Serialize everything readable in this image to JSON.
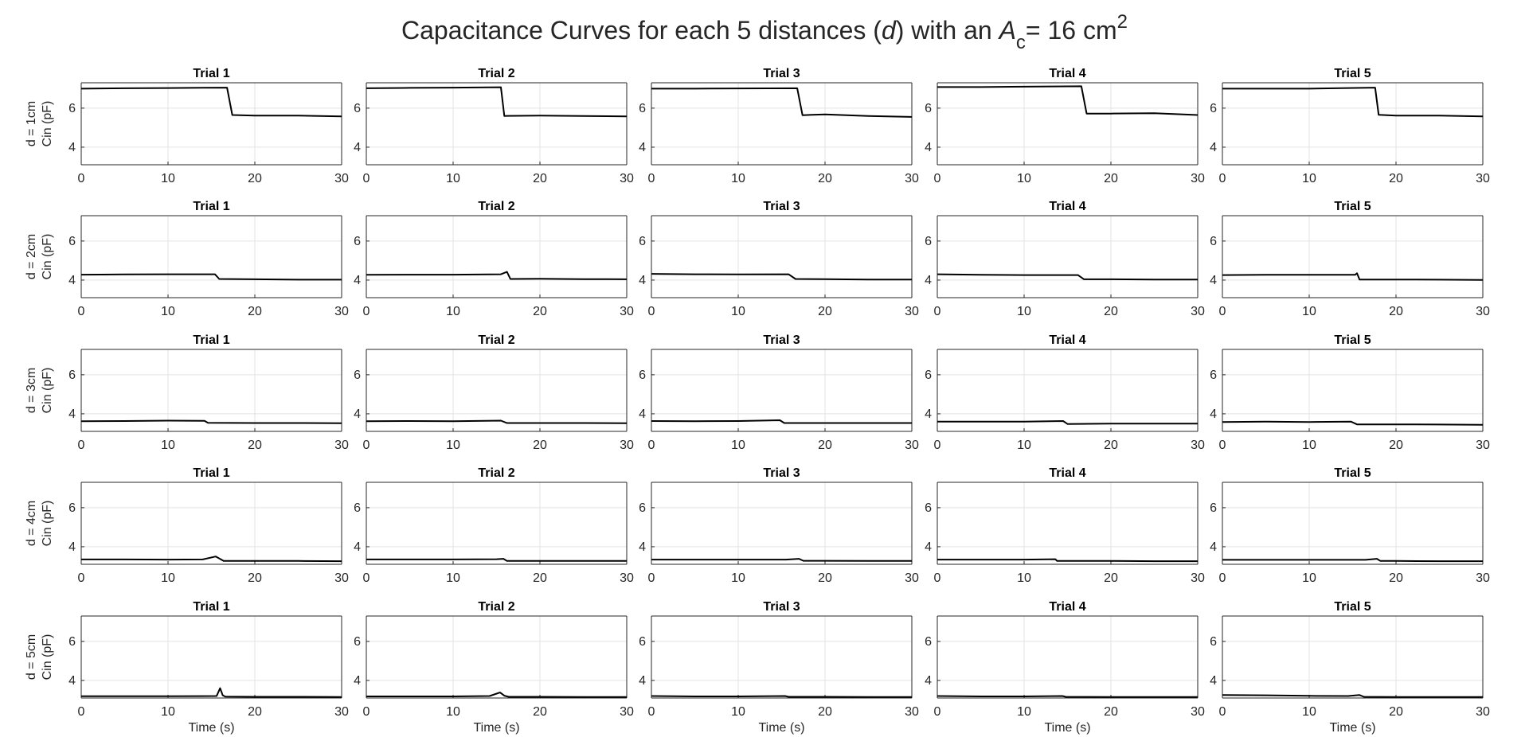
{
  "figure": {
    "title_main": "Capacitance Curves for each 5 distances (",
    "title_d": "d",
    "title_mid": ") with an ",
    "title_A": "A",
    "title_sub": "c",
    "title_eq": "= 16 cm",
    "title_sup": "2"
  },
  "chart_data": {
    "type": "line",
    "xlim": [
      0,
      30
    ],
    "ylim": [
      3.1,
      7.3
    ],
    "xticks": [
      0,
      10,
      20,
      30
    ],
    "yticks": [
      4,
      6
    ],
    "grid": true,
    "xlabel": "Time (s)",
    "trial_titles": [
      "Trial 1",
      "Trial 2",
      "Trial 3",
      "Trial 4",
      "Trial 5"
    ],
    "row_labels": [
      [
        "d = 1cm",
        "Cin (pF)"
      ],
      [
        "d = 2cm",
        "Cin (pF)"
      ],
      [
        "d = 3cm",
        "Cin (pF)"
      ],
      [
        "d = 4cm",
        "Cin (pF)"
      ],
      [
        "d = 5cm",
        "Cin (pF)"
      ]
    ],
    "panels": [
      [
        {
          "x": [
            0,
            5,
            10,
            16.8,
            17.4,
            20,
            25,
            30
          ],
          "y": [
            7.0,
            7.02,
            7.03,
            7.05,
            5.65,
            5.62,
            5.62,
            5.58
          ]
        },
        {
          "x": [
            0,
            5,
            10,
            15.5,
            15.9,
            20,
            25,
            30
          ],
          "y": [
            7.02,
            7.04,
            7.05,
            7.07,
            5.6,
            5.62,
            5.6,
            5.58
          ]
        },
        {
          "x": [
            0,
            5,
            10,
            16.8,
            17.4,
            20,
            25,
            30
          ],
          "y": [
            7.0,
            7.0,
            7.01,
            7.02,
            5.64,
            5.68,
            5.6,
            5.55
          ]
        },
        {
          "x": [
            0,
            5,
            10,
            16.6,
            17.2,
            20,
            25,
            30
          ],
          "y": [
            7.08,
            7.08,
            7.1,
            7.12,
            5.72,
            5.72,
            5.74,
            5.65
          ]
        },
        {
          "x": [
            0,
            5,
            10,
            17.6,
            18.0,
            20,
            25,
            30
          ],
          "y": [
            7.0,
            7.0,
            7.0,
            7.05,
            5.66,
            5.62,
            5.62,
            5.58
          ]
        }
      ],
      [
        {
          "x": [
            0,
            5,
            10,
            15.4,
            15.9,
            20,
            25,
            30
          ],
          "y": [
            4.28,
            4.29,
            4.3,
            4.3,
            4.06,
            4.04,
            4.02,
            4.02
          ]
        },
        {
          "x": [
            0,
            5,
            10,
            15.5,
            16.2,
            16.6,
            20,
            25,
            30
          ],
          "y": [
            4.27,
            4.28,
            4.28,
            4.3,
            4.42,
            4.06,
            4.07,
            4.05,
            4.04
          ]
        },
        {
          "x": [
            0,
            5,
            10,
            15.8,
            16.6,
            20,
            25,
            30
          ],
          "y": [
            4.32,
            4.3,
            4.29,
            4.3,
            4.06,
            4.05,
            4.03,
            4.03
          ]
        },
        {
          "x": [
            0,
            5,
            10,
            16.2,
            16.9,
            20,
            25,
            30
          ],
          "y": [
            4.3,
            4.27,
            4.26,
            4.26,
            4.04,
            4.04,
            4.03,
            4.03
          ]
        },
        {
          "x": [
            0,
            5,
            10,
            15.3,
            15.5,
            15.8,
            20,
            25,
            30
          ],
          "y": [
            4.26,
            4.27,
            4.27,
            4.27,
            4.35,
            4.03,
            4.03,
            4.02,
            4.01
          ]
        }
      ],
      [
        {
          "x": [
            0,
            5,
            10,
            14.2,
            14.6,
            20,
            25,
            30
          ],
          "y": [
            3.62,
            3.63,
            3.65,
            3.64,
            3.54,
            3.53,
            3.53,
            3.52
          ]
        },
        {
          "x": [
            0,
            5,
            10,
            15.5,
            16.2,
            20,
            25,
            30
          ],
          "y": [
            3.62,
            3.63,
            3.62,
            3.65,
            3.53,
            3.53,
            3.53,
            3.52
          ]
        },
        {
          "x": [
            0,
            5,
            10,
            14.8,
            15.3,
            20,
            25,
            30
          ],
          "y": [
            3.63,
            3.62,
            3.63,
            3.67,
            3.53,
            3.53,
            3.53,
            3.53
          ]
        },
        {
          "x": [
            0,
            5,
            10,
            14.5,
            15.0,
            20,
            25,
            30
          ],
          "y": [
            3.6,
            3.6,
            3.6,
            3.63,
            3.48,
            3.5,
            3.5,
            3.5
          ]
        },
        {
          "x": [
            0,
            5,
            10,
            14.8,
            15.5,
            20,
            25,
            30
          ],
          "y": [
            3.58,
            3.6,
            3.58,
            3.6,
            3.46,
            3.46,
            3.45,
            3.44
          ]
        }
      ],
      [
        {
          "x": [
            0,
            5,
            10,
            14.0,
            15.5,
            16.4,
            20,
            25,
            30
          ],
          "y": [
            3.35,
            3.35,
            3.34,
            3.35,
            3.5,
            3.27,
            3.27,
            3.27,
            3.26
          ]
        },
        {
          "x": [
            0,
            5,
            10,
            15.0,
            15.8,
            16.2,
            20,
            25,
            30
          ],
          "y": [
            3.35,
            3.35,
            3.35,
            3.36,
            3.38,
            3.27,
            3.27,
            3.27,
            3.27
          ]
        },
        {
          "x": [
            0,
            5,
            10,
            15.5,
            17.0,
            17.5,
            20,
            25,
            30
          ],
          "y": [
            3.34,
            3.34,
            3.34,
            3.34,
            3.38,
            3.28,
            3.28,
            3.27,
            3.27
          ]
        },
        {
          "x": [
            0,
            5,
            10,
            13.6,
            13.8,
            20,
            25,
            30
          ],
          "y": [
            3.34,
            3.34,
            3.34,
            3.36,
            3.27,
            3.27,
            3.26,
            3.26
          ]
        },
        {
          "x": [
            0,
            5,
            10,
            16.5,
            17.8,
            18.2,
            20,
            25,
            30
          ],
          "y": [
            3.33,
            3.33,
            3.33,
            3.33,
            3.38,
            3.27,
            3.27,
            3.26,
            3.26
          ]
        }
      ],
      [
        {
          "x": [
            0,
            5,
            10,
            15.6,
            16.0,
            16.3,
            16.6,
            20,
            25,
            30
          ],
          "y": [
            3.19,
            3.19,
            3.19,
            3.2,
            3.6,
            3.24,
            3.17,
            3.16,
            3.16,
            3.15
          ]
        },
        {
          "x": [
            0,
            5,
            10,
            14.2,
            15.4,
            15.9,
            16.4,
            20,
            25,
            30
          ],
          "y": [
            3.18,
            3.18,
            3.18,
            3.2,
            3.38,
            3.22,
            3.16,
            3.16,
            3.15,
            3.15
          ]
        },
        {
          "x": [
            0,
            5,
            10,
            15.4,
            15.8,
            20,
            25,
            30
          ],
          "y": [
            3.2,
            3.18,
            3.18,
            3.2,
            3.16,
            3.16,
            3.15,
            3.15
          ]
        },
        {
          "x": [
            0,
            5,
            10,
            14.4,
            14.8,
            20,
            25,
            30
          ],
          "y": [
            3.2,
            3.18,
            3.18,
            3.2,
            3.16,
            3.15,
            3.15,
            3.15
          ]
        },
        {
          "x": [
            0,
            5,
            10,
            14.5,
            15.8,
            16.3,
            20,
            25,
            30
          ],
          "y": [
            3.25,
            3.24,
            3.21,
            3.2,
            3.25,
            3.16,
            3.15,
            3.15,
            3.15
          ]
        }
      ]
    ]
  }
}
